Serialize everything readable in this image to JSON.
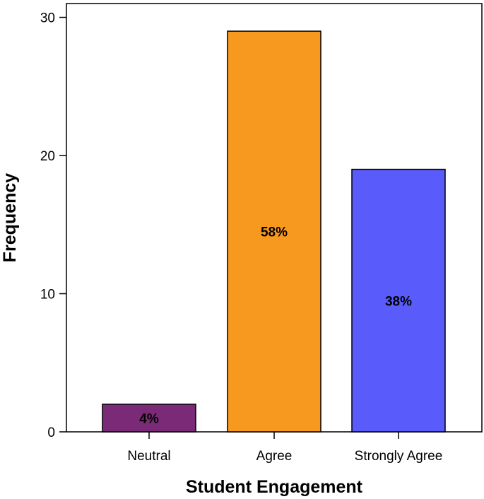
{
  "chart_data": {
    "type": "bar",
    "categories": [
      "Neutral",
      "Agree",
      "Strongly Agree"
    ],
    "values": [
      2,
      29,
      19
    ],
    "data_labels": [
      "4%",
      "58%",
      "38%"
    ],
    "colors": [
      "#7b2a78",
      "#f7991f",
      "#5a5bfb"
    ],
    "xlabel": "Student Engagement",
    "ylabel": "Frequency",
    "ylim": [
      0,
      31
    ],
    "yticks": [
      0,
      10,
      20,
      30
    ],
    "grid": false,
    "legend": "none"
  }
}
